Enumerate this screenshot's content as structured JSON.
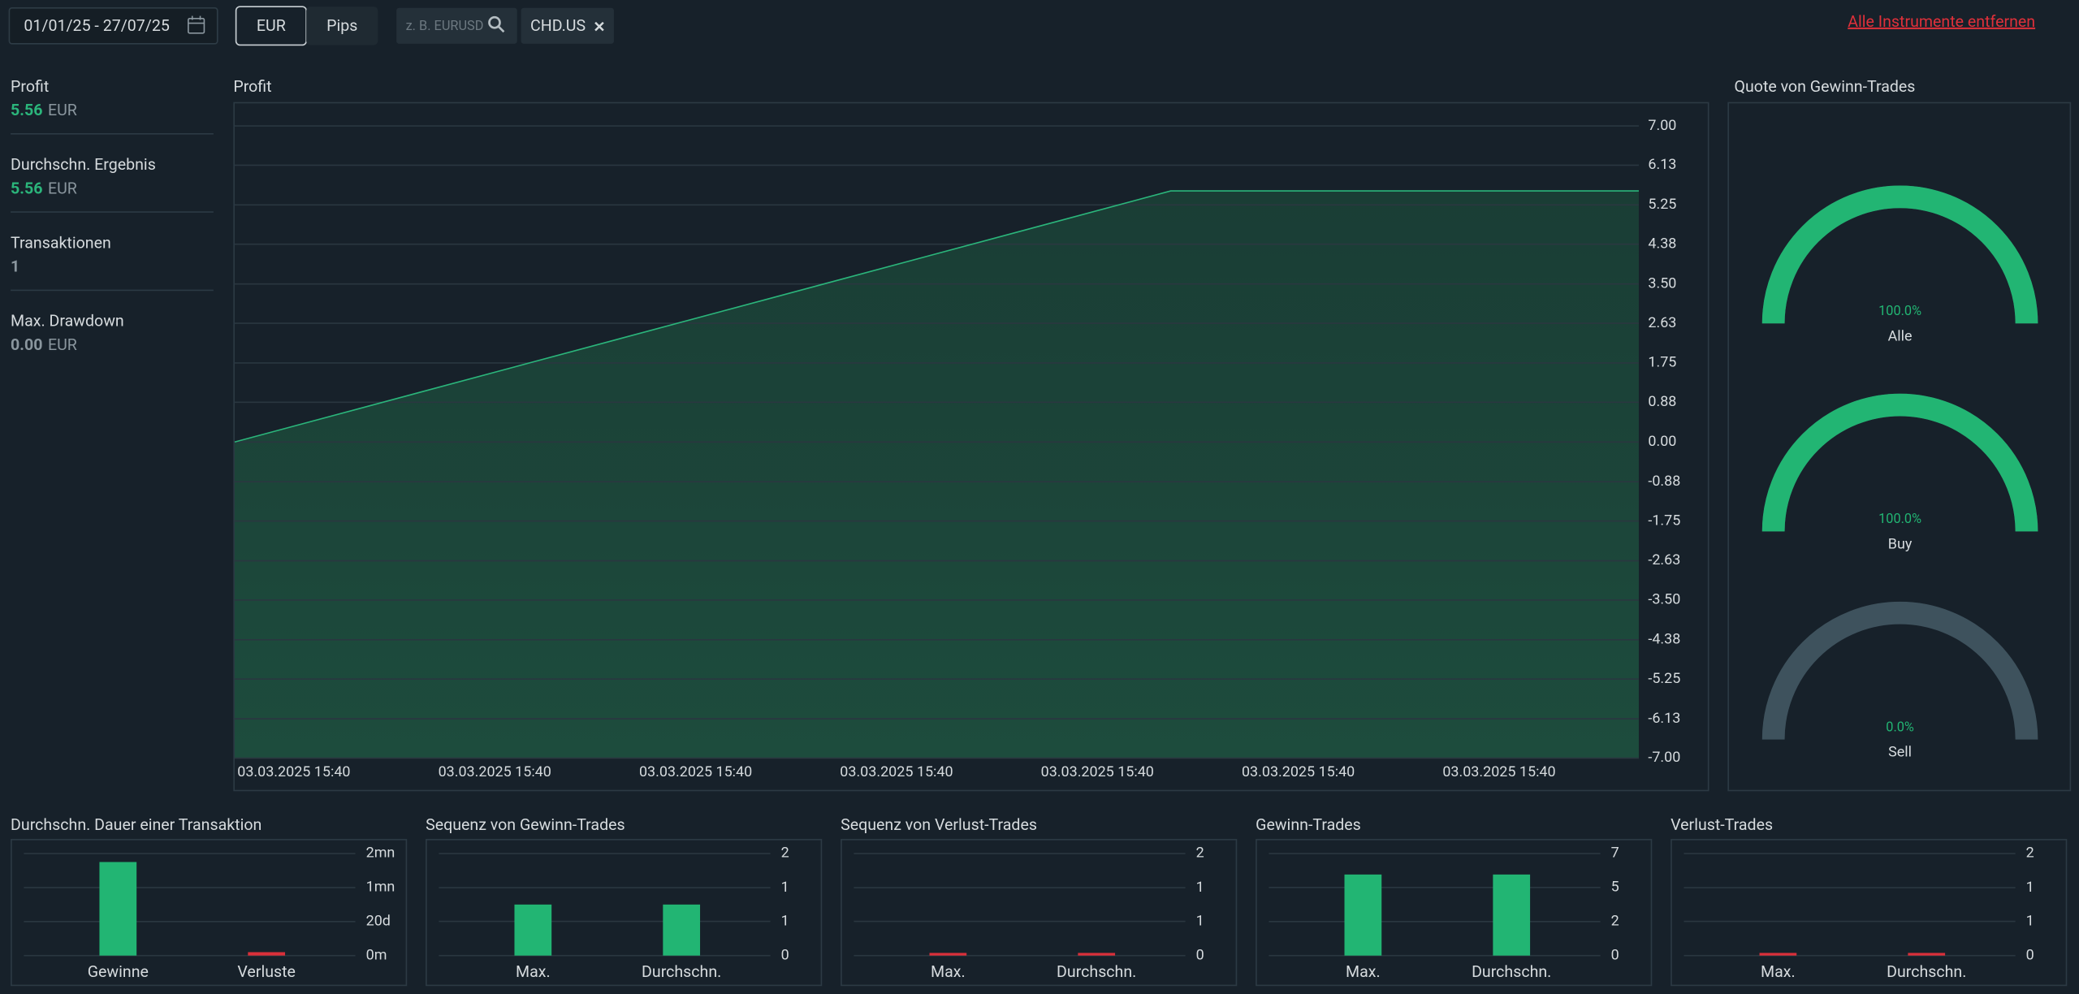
{
  "toolbar": {
    "date_range": "01/01/25 - 27/07/25",
    "currency_buttons": [
      "EUR",
      "Pips"
    ],
    "search_placeholder": "z. B. EURUSD",
    "instrument_tag": "CHD.US",
    "remove_all": "Alle Instrumente entfernen"
  },
  "stats": [
    {
      "label": "Profit",
      "value": "5.56",
      "unit": "EUR",
      "color": "#2bb57b"
    },
    {
      "label": "Durchschn. Ergebnis",
      "value": "5.56",
      "unit": "EUR",
      "color": "#2bb57b"
    },
    {
      "label": "Transaktionen",
      "value": "1",
      "unit": "",
      "color": "#8a969e"
    },
    {
      "label": "Max. Drawdown",
      "value": "0.00",
      "unit": "EUR",
      "color": "#8a969e"
    }
  ],
  "profit_chart": {
    "type": "area",
    "title": "Profit",
    "values": [
      0,
      5.56,
      5.56
    ],
    "color": "#2bb57b",
    "xticks": [
      "03.03.2025 15:40",
      "03.03.2025 15:40",
      "03.03.2025 15:40",
      "03.03.2025 15:40",
      "03.03.2025 15:40",
      "03.03.2025 15:40",
      "03.03.2025 15:40"
    ],
    "ylim": [
      -7,
      7
    ],
    "yticks": [
      {
        "value": 7,
        "label": "7.00"
      },
      {
        "value": 6.13,
        "label": "6.13"
      },
      {
        "value": 5.25,
        "label": "5.25"
      },
      {
        "value": 4.38,
        "label": "4.38"
      },
      {
        "value": 3.5,
        "label": "3.50"
      },
      {
        "value": 2.63,
        "label": "2.63"
      },
      {
        "value": 1.75,
        "label": "1.75"
      },
      {
        "value": 0.88,
        "label": "0.88"
      },
      {
        "value": 0,
        "label": "0.00"
      },
      {
        "value": -0.88,
        "label": "-0.88"
      },
      {
        "value": -1.75,
        "label": "-1.75"
      },
      {
        "value": -2.63,
        "label": "-2.63"
      },
      {
        "value": -3.5,
        "label": "-3.50"
      },
      {
        "value": -4.38,
        "label": "-4.38"
      },
      {
        "value": -5.25,
        "label": "-5.25"
      },
      {
        "value": -6.13,
        "label": "-6.13"
      },
      {
        "value": -7,
        "label": "-7.00"
      }
    ],
    "grid": true
  },
  "win_rate": {
    "type": "gauge",
    "title": "Quote von Gewinn-Trades",
    "categories": [
      "Alle",
      "Buy",
      "Sell"
    ],
    "values": [
      100,
      100,
      0
    ],
    "value_labels": [
      "100.0%",
      "100.0%",
      "0.0%"
    ],
    "color": "#22b573",
    "track_color": "#3e525d"
  },
  "bar_charts": [
    {
      "type": "bar",
      "title": "Durchschn. Dauer einer Transaktion",
      "categories": [
        "Gewinne",
        "Verluste"
      ],
      "values": [
        2.75,
        0.1
      ],
      "colors": [
        "#22b573",
        "#d9303a"
      ],
      "ylim": [
        0,
        3
      ],
      "yticks": [
        {
          "value": 0,
          "label": "0m"
        },
        {
          "value": 1,
          "label": "20d"
        },
        {
          "value": 2,
          "label": "1mn"
        },
        {
          "value": 3,
          "label": "2mn"
        }
      ]
    },
    {
      "type": "bar",
      "title": "Sequenz von Gewinn-Trades",
      "categories": [
        "Max.",
        "Durchschn."
      ],
      "values": [
        1,
        1
      ],
      "colors": [
        "#22b573",
        "#22b573"
      ],
      "ylim": [
        0,
        2
      ],
      "yticks": [
        0,
        {
          "value": 0.67,
          "label": "1"
        },
        {
          "value": 1.33,
          "label": "1"
        },
        2
      ]
    },
    {
      "type": "bar",
      "title": "Sequenz von Verlust-Trades",
      "categories": [
        "Max.",
        "Durchschn."
      ],
      "values": [
        0,
        0
      ],
      "colors": [
        "#d9303a",
        "#d9303a"
      ],
      "ylim": [
        0,
        2
      ],
      "yticks": [
        0,
        {
          "value": 0.67,
          "label": "1"
        },
        {
          "value": 1.33,
          "label": "1"
        },
        2
      ]
    },
    {
      "type": "bar",
      "title": "Gewinn-Trades",
      "categories": [
        "Max.",
        "Durchschn."
      ],
      "values": [
        5.56,
        5.56
      ],
      "colors": [
        "#22b573",
        "#22b573"
      ],
      "ylim": [
        0,
        7
      ],
      "yticks": [
        0,
        {
          "value": 2.33,
          "label": "2"
        },
        {
          "value": 4.67,
          "label": "5"
        },
        7
      ]
    },
    {
      "type": "bar",
      "title": "Verlust-Trades",
      "categories": [
        "Max.",
        "Durchschn."
      ],
      "values": [
        0,
        0
      ],
      "colors": [
        "#d9303a",
        "#d9303a"
      ],
      "ylim": [
        0,
        2
      ],
      "yticks": [
        0,
        {
          "value": 0.67,
          "label": "1"
        },
        {
          "value": 1.33,
          "label": "1"
        },
        2
      ]
    }
  ]
}
